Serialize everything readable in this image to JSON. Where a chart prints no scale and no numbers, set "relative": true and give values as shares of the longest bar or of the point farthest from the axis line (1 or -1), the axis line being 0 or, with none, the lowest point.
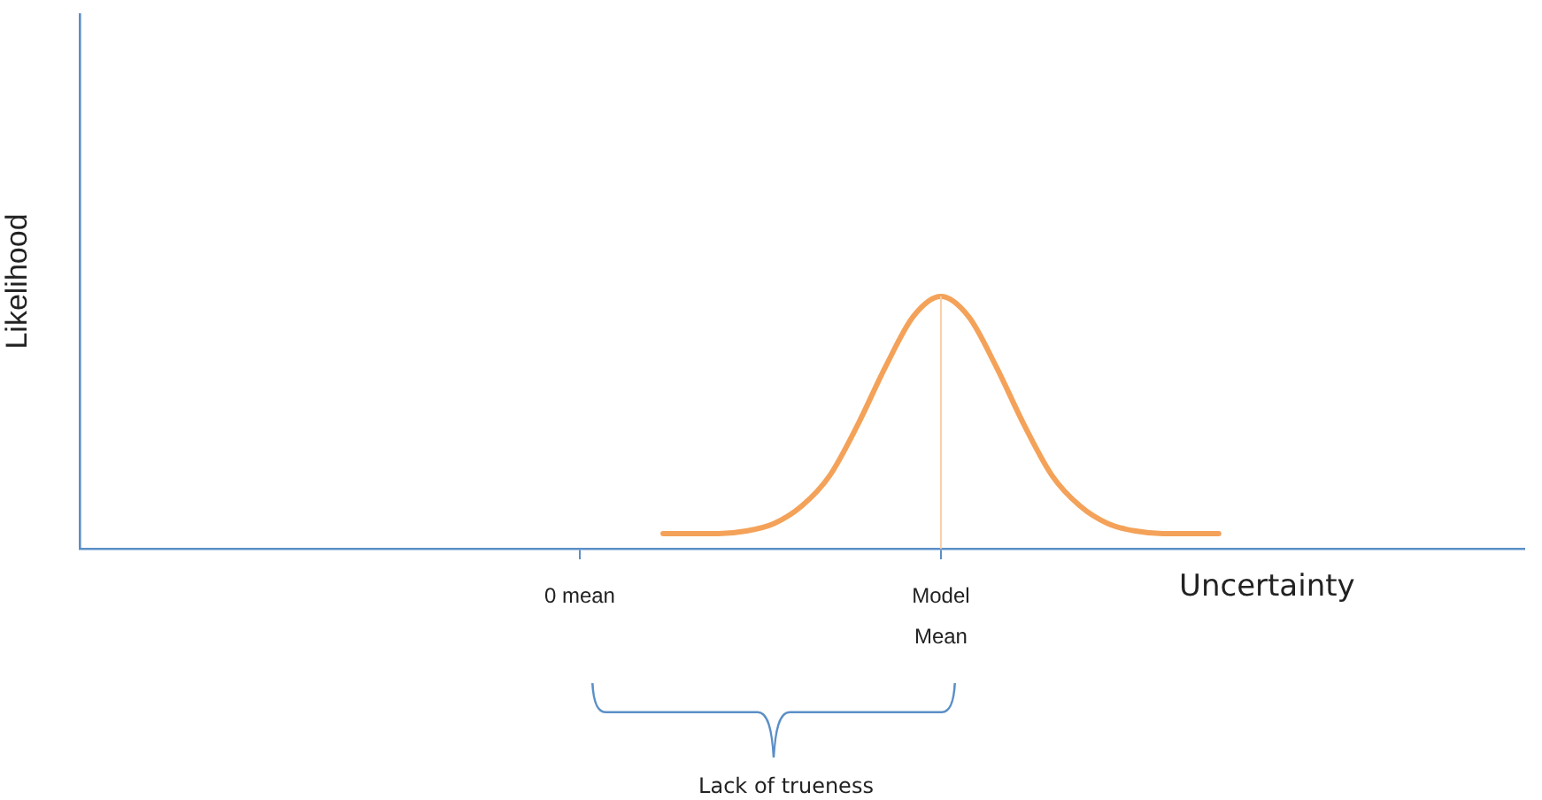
{
  "chart_data": {
    "type": "line",
    "relative": true,
    "xlabel": "Uncertainty",
    "ylabel": "Likelihood",
    "categories": [
      null,
      null,
      null,
      null,
      null,
      null,
      null,
      null,
      null,
      null,
      null,
      null,
      null,
      null,
      null,
      null,
      null,
      null,
      "0 mean",
      null,
      null,
      null,
      null,
      null,
      null,
      null,
      null,
      null,
      null,
      null,
      null,
      "Model Mean",
      null,
      null,
      null,
      null,
      null,
      null,
      null,
      null,
      null,
      null,
      null,
      null,
      null,
      null,
      null,
      null,
      null,
      null,
      null,
      null,
      null
    ],
    "series": [
      {
        "color": "#f4a259",
        "values": [
          null,
          null,
          null,
          null,
          null,
          null,
          null,
          null,
          null,
          null,
          null,
          null,
          null,
          null,
          null,
          null,
          null,
          null,
          null,
          null,
          null,
          0.06,
          0.06,
          0.06,
          0.07,
          0.1,
          0.17,
          0.29,
          0.49,
          0.72,
          0.92,
          1.0,
          0.92,
          0.72,
          0.49,
          0.29,
          0.17,
          0.1,
          0.07,
          0.06,
          0.06,
          0.06,
          null,
          null,
          null,
          null,
          null,
          null,
          null,
          null,
          null,
          null,
          null
        ]
      }
    ],
    "ref_lines": [
      {
        "axis": "x",
        "value": "Model Mean",
        "color": "#f8cfa8"
      }
    ],
    "annotations": [
      "Lack of trueness"
    ],
    "grid": false,
    "legend": false,
    "marker": "none",
    "line_style": "solid"
  }
}
